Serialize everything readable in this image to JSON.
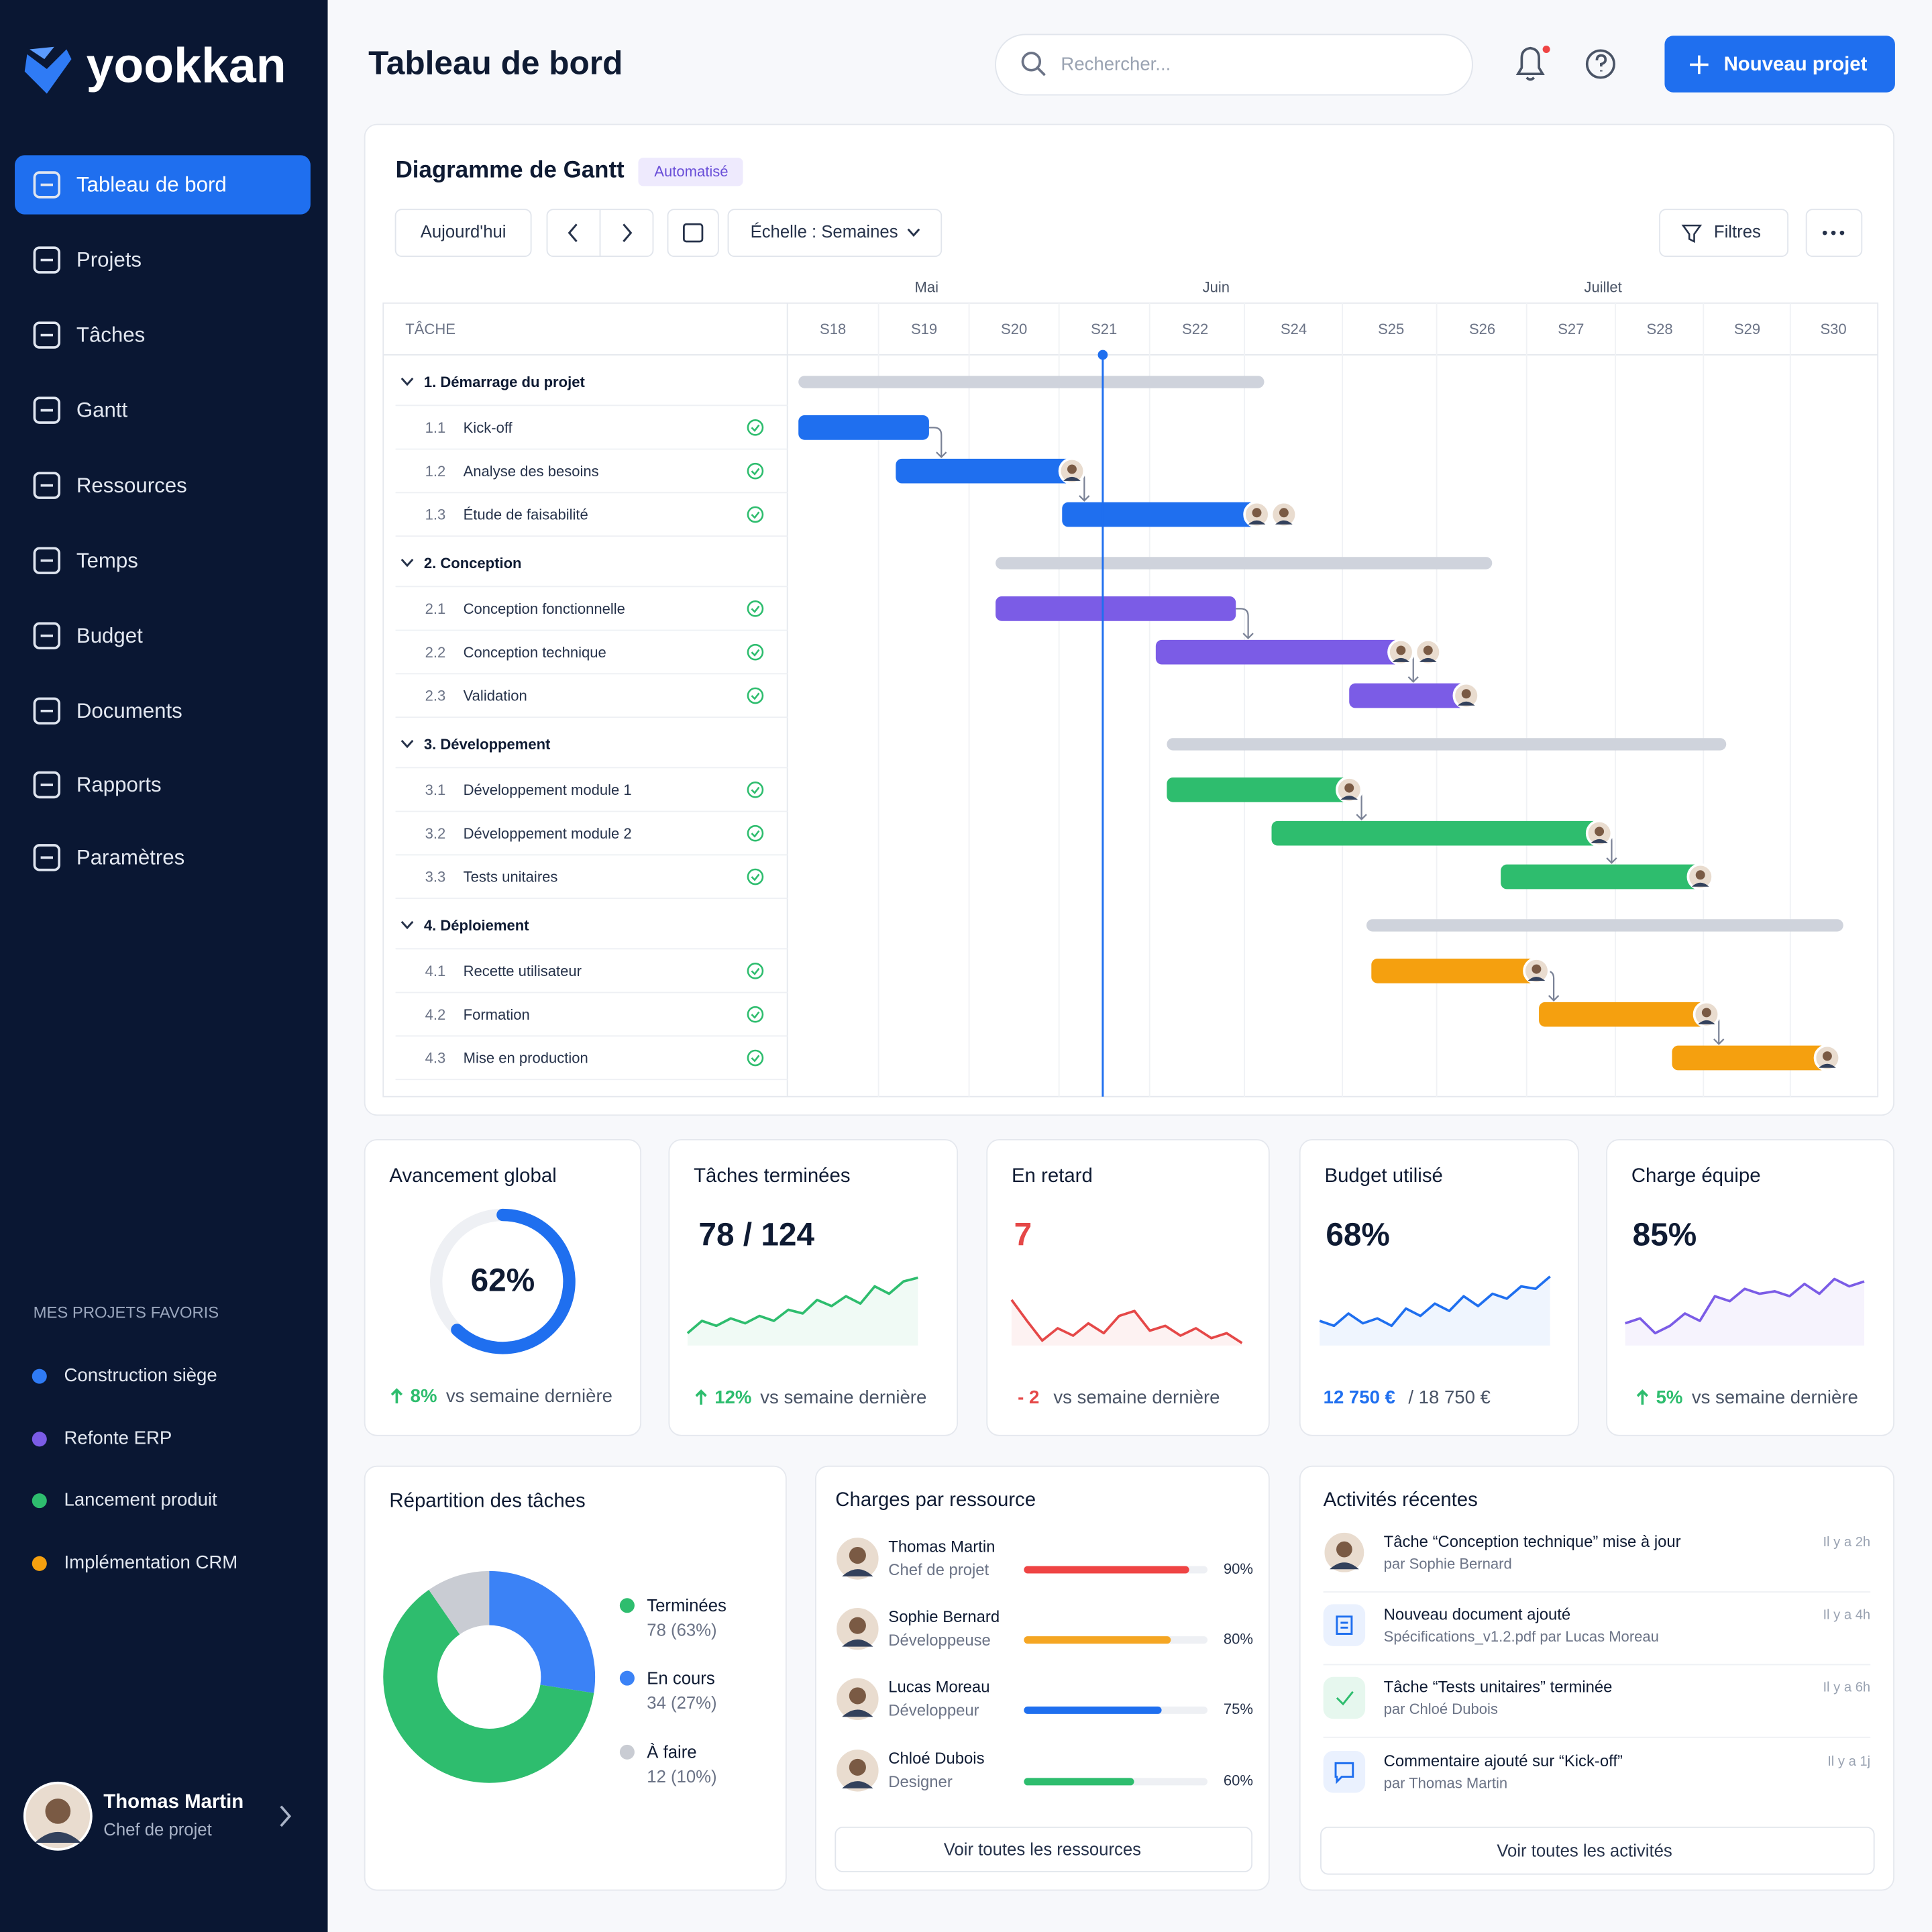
{
  "sidebar": {
    "logo": "yookkan",
    "nav": [
      "Tableau de bord",
      "Projets",
      "Tâches",
      "Gantt",
      "Ressources",
      "Temps",
      "Budget",
      "Documents",
      "Rapports",
      "Paramètres"
    ],
    "favorites_title": "MES PROJETS FAVORIS",
    "favorites": [
      "Construction siège",
      "Refonte ERP",
      "Lancement produit",
      "Implémentation CRM"
    ],
    "user": {
      "name": "Thomas Martin",
      "role": "Chef de projet"
    }
  },
  "header": {
    "title": "Tableau de bord",
    "search_placeholder": "Rechercher...",
    "button": "Nouveau projet"
  },
  "gantt": {
    "title": "Diagramme de Gantt",
    "badge": "Automatisé",
    "today": "Aujourd'hui",
    "scale": "Échelle : Semaines",
    "filters": "Filtres",
    "task_header": "TÂCHE",
    "months": [
      "Mai",
      "Juin",
      "Juillet"
    ],
    "weeks": [
      "S18",
      "S19",
      "S20",
      "S21",
      "S22",
      "S24",
      "S25",
      "S26",
      "S27",
      "S28",
      "S29",
      "S30"
    ],
    "groups": [
      {
        "name": "1. Démarrage du projet",
        "tasks": [
          {
            "id": "1.1",
            "name": "Kick-off"
          },
          {
            "id": "1.2",
            "name": "Analyse des besoins"
          },
          {
            "id": "1.3",
            "name": "Étude de faisabilité"
          }
        ]
      },
      {
        "name": "2. Conception",
        "tasks": [
          {
            "id": "2.1",
            "name": "Conception fonctionnelle"
          },
          {
            "id": "2.2",
            "name": "Conception technique"
          },
          {
            "id": "2.3",
            "name": "Validation"
          }
        ]
      },
      {
        "name": "3. Développement",
        "tasks": [
          {
            "id": "3.1",
            "name": "Développement module 1"
          },
          {
            "id": "3.2",
            "name": "Développement module 2"
          },
          {
            "id": "3.3",
            "name": "Tests unitaires"
          }
        ]
      },
      {
        "name": "4. Déploiement",
        "tasks": [
          {
            "id": "4.1",
            "name": "Recette utilisateur"
          },
          {
            "id": "4.2",
            "name": "Formation"
          },
          {
            "id": "4.3",
            "name": "Mise en production"
          }
        ]
      }
    ]
  },
  "kpis": [
    {
      "title": "Avancement global",
      "value": {
        "value": 62,
        "label": "62%"
      },
      "delta": "8%",
      "note": "vs semaine dernière"
    },
    {
      "title": "Tâches terminées",
      "value": "78 / 124",
      "delta": "12%",
      "note": "vs semaine dernière"
    },
    {
      "title": "En retard",
      "value": "7",
      "delta": "- 2",
      "note": "vs semaine dernière"
    },
    {
      "title": "Budget utilisé",
      "value": "68%",
      "used": "12 750 €",
      "total": "/ 18 750 €"
    },
    {
      "title": "Charge équipe",
      "value": "85%",
      "delta": "5%",
      "note": "vs semaine dernière"
    }
  ],
  "distribution": {
    "title": "Répartition des tâches",
    "segments": [
      {
        "name": "Terminées",
        "value": 78,
        "label": "78 (63%)"
      },
      {
        "name": "En cours",
        "value": 34,
        "label": "34 (27%)"
      },
      {
        "name": "À faire",
        "value": 12,
        "label": "12 (10%)"
      }
    ]
  },
  "resources": {
    "title": "Charges par ressource",
    "items": [
      {
        "name": "Thomas Martin",
        "role": "Chef de projet",
        "load": {
          "value": 90,
          "label": "90%"
        }
      },
      {
        "name": "Sophie Bernard",
        "role": "Développeuse",
        "load": {
          "value": 80,
          "label": "80%"
        }
      },
      {
        "name": "Lucas Moreau",
        "role": "Développeur",
        "load": {
          "value": 75,
          "label": "75%"
        }
      },
      {
        "name": "Chloé Dubois",
        "role": "Designer",
        "load": {
          "value": 60,
          "label": "60%"
        }
      }
    ],
    "link": "Voir toutes les ressources"
  },
  "activities": {
    "title": "Activités récentes",
    "items": [
      {
        "text": "Tâche “Conception technique” mise à jour",
        "by": "par Sophie Bernard",
        "time": "Il y a 2h"
      },
      {
        "text": "Nouveau document ajouté",
        "by": "Spécifications_v1.2.pdf par Lucas Moreau",
        "time": "Il y a 4h"
      },
      {
        "text": "Tâche “Tests unitaires” terminée",
        "by": "par Chloé Dubois",
        "time": "Il y a 6h"
      },
      {
        "text": "Commentaire ajouté sur “Kick-off”",
        "by": "par Thomas Martin",
        "time": "Il y a 1j"
      }
    ],
    "link": "Voir toutes les activités"
  }
}
